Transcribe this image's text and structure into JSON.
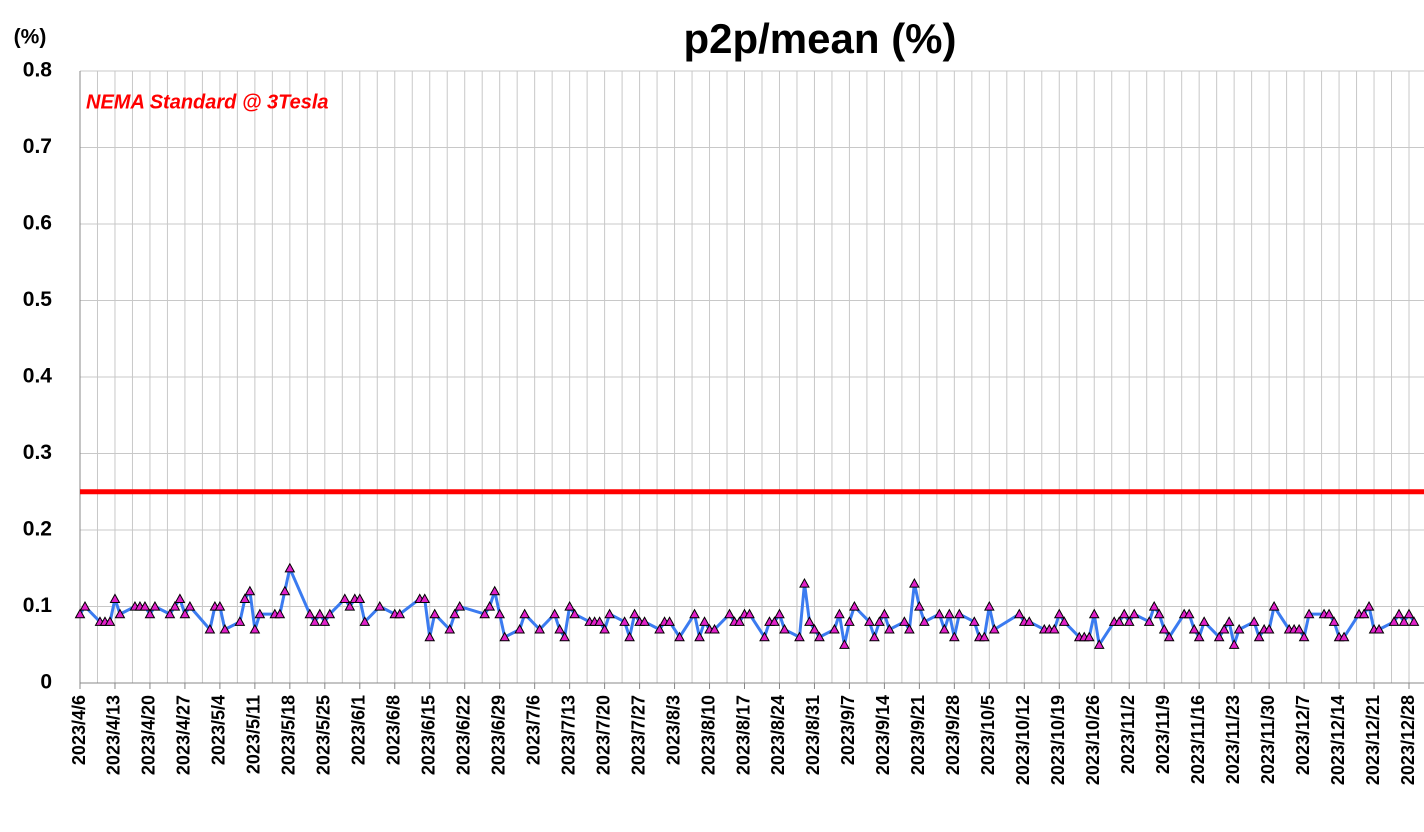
{
  "chart_data": {
    "type": "line",
    "title": "p2p/mean (%)",
    "y_label": "(%)",
    "color": "#3b7bf0",
    "marker_color": "#e020c8",
    "xlim": [
      "2023/4/6",
      "2023/12/31"
    ],
    "xticks": [
      "2023/4/6",
      "2023/4/13",
      "2023/4/20",
      "2023/4/27",
      "2023/5/4",
      "2023/5/11",
      "2023/5/18",
      "2023/5/25",
      "2023/6/1",
      "2023/6/8",
      "2023/6/15",
      "2023/6/22",
      "2023/6/29",
      "2023/7/6",
      "2023/7/13",
      "2023/7/20",
      "2023/7/27",
      "2023/8/3",
      "2023/8/10",
      "2023/8/17",
      "2023/8/24",
      "2023/8/31",
      "2023/9/7",
      "2023/9/14",
      "2023/9/21",
      "2023/9/28",
      "2023/10/5",
      "2023/10/12",
      "2023/10/19",
      "2023/10/26",
      "2023/11/2",
      "2023/11/9",
      "2023/11/16",
      "2023/11/23",
      "2023/11/30",
      "2023/12/7",
      "2023/12/14",
      "2023/12/21",
      "2023/12/28"
    ],
    "ylim": [
      0,
      0.8
    ],
    "yticks": [
      0,
      0.1,
      0.2,
      0.3,
      0.4,
      0.5,
      0.6,
      0.7,
      0.8
    ],
    "grid": true,
    "reference_line": {
      "value": 0.25,
      "color": "#ff0000",
      "label": "NEMA Standard @ 3Tesla"
    },
    "x": [
      "2023/4/6",
      "2023/4/7",
      "2023/4/10",
      "2023/4/11",
      "2023/4/12",
      "2023/4/13",
      "2023/4/14",
      "2023/4/17",
      "2023/4/18",
      "2023/4/19",
      "2023/4/20",
      "2023/4/21",
      "2023/4/24",
      "2023/4/25",
      "2023/4/26",
      "2023/4/27",
      "2023/4/28",
      "2023/5/2",
      "2023/5/3",
      "2023/5/4",
      "2023/5/5",
      "2023/5/8",
      "2023/5/9",
      "2023/5/10",
      "2023/5/11",
      "2023/5/12",
      "2023/5/15",
      "2023/5/16",
      "2023/5/17",
      "2023/5/18",
      "2023/5/22",
      "2023/5/23",
      "2023/5/24",
      "2023/5/25",
      "2023/5/26",
      "2023/5/29",
      "2023/5/30",
      "2023/5/31",
      "2023/6/1",
      "2023/6/2",
      "2023/6/5",
      "2023/6/8",
      "2023/6/9",
      "2023/6/13",
      "2023/6/14",
      "2023/6/15",
      "2023/6/16",
      "2023/6/19",
      "2023/6/20",
      "2023/6/21",
      "2023/6/26",
      "2023/6/27",
      "2023/6/28",
      "2023/6/29",
      "2023/6/30",
      "2023/7/3",
      "2023/7/4",
      "2023/7/7",
      "2023/7/10",
      "2023/7/11",
      "2023/7/12",
      "2023/7/13",
      "2023/7/14",
      "2023/7/17",
      "2023/7/18",
      "2023/7/19",
      "2023/7/20",
      "2023/7/21",
      "2023/7/24",
      "2023/7/25",
      "2023/7/26",
      "2023/7/27",
      "2023/7/28",
      "2023/7/31",
      "2023/8/1",
      "2023/8/2",
      "2023/8/4",
      "2023/8/7",
      "2023/8/8",
      "2023/8/9",
      "2023/8/10",
      "2023/8/11",
      "2023/8/14",
      "2023/8/15",
      "2023/8/16",
      "2023/8/17",
      "2023/8/18",
      "2023/8/21",
      "2023/8/22",
      "2023/8/23",
      "2023/8/24",
      "2023/8/25",
      "2023/8/28",
      "2023/8/29",
      "2023/8/30",
      "2023/8/31",
      "2023/9/1",
      "2023/9/4",
      "2023/9/5",
      "2023/9/6",
      "2023/9/7",
      "2023/9/8",
      "2023/9/11",
      "2023/9/12",
      "2023/9/13",
      "2023/9/14",
      "2023/9/15",
      "2023/9/18",
      "2023/9/19",
      "2023/9/20",
      "2023/9/21",
      "2023/9/22",
      "2023/9/25",
      "2023/9/26",
      "2023/9/27",
      "2023/9/28",
      "2023/9/29",
      "2023/10/2",
      "2023/10/3",
      "2023/10/4",
      "2023/10/5",
      "2023/10/6",
      "2023/10/11",
      "2023/10/12",
      "2023/10/13",
      "2023/10/16",
      "2023/10/17",
      "2023/10/18",
      "2023/10/19",
      "2023/10/20",
      "2023/10/23",
      "2023/10/24",
      "2023/10/25",
      "2023/10/26",
      "2023/10/27",
      "2023/10/30",
      "2023/10/31",
      "2023/11/1",
      "2023/11/2",
      "2023/11/3",
      "2023/11/6",
      "2023/11/7",
      "2023/11/8",
      "2023/11/9",
      "2023/11/10",
      "2023/11/13",
      "2023/11/14",
      "2023/11/15",
      "2023/11/16",
      "2023/11/17",
      "2023/11/20",
      "2023/11/21",
      "2023/11/22",
      "2023/11/23",
      "2023/11/24",
      "2023/11/27",
      "2023/11/28",
      "2023/11/29",
      "2023/11/30",
      "2023/12/1",
      "2023/12/4",
      "2023/12/5",
      "2023/12/6",
      "2023/12/7",
      "2023/12/8",
      "2023/12/11",
      "2023/12/12",
      "2023/12/13",
      "2023/12/14",
      "2023/12/15",
      "2023/12/18",
      "2023/12/19",
      "2023/12/20",
      "2023/12/21",
      "2023/12/22",
      "2023/12/25",
      "2023/12/26",
      "2023/12/27",
      "2023/12/28",
      "2023/12/29"
    ],
    "values": [
      0.09,
      0.1,
      0.08,
      0.08,
      0.08,
      0.11,
      0.09,
      0.1,
      0.1,
      0.1,
      0.09,
      0.1,
      0.09,
      0.1,
      0.11,
      0.09,
      0.1,
      0.07,
      0.1,
      0.1,
      0.07,
      0.08,
      0.11,
      0.12,
      0.07,
      0.09,
      0.09,
      0.09,
      0.12,
      0.15,
      0.09,
      0.08,
      0.09,
      0.08,
      0.09,
      0.11,
      0.1,
      0.11,
      0.11,
      0.08,
      0.1,
      0.09,
      0.09,
      0.11,
      0.11,
      0.06,
      0.09,
      0.07,
      0.09,
      0.1,
      0.09,
      0.1,
      0.12,
      0.09,
      0.06,
      0.07,
      0.09,
      0.07,
      0.09,
      0.07,
      0.06,
      0.1,
      0.09,
      0.08,
      0.08,
      0.08,
      0.07,
      0.09,
      0.08,
      0.06,
      0.09,
      0.08,
      0.08,
      0.07,
      0.08,
      0.08,
      0.06,
      0.09,
      0.06,
      0.08,
      0.07,
      0.07,
      0.09,
      0.08,
      0.08,
      0.09,
      0.09,
      0.06,
      0.08,
      0.08,
      0.09,
      0.07,
      0.06,
      0.13,
      0.08,
      0.07,
      0.06,
      0.07,
      0.09,
      0.05,
      0.08,
      0.1,
      0.08,
      0.06,
      0.08,
      0.09,
      0.07,
      0.08,
      0.07,
      0.13,
      0.1,
      0.08,
      0.09,
      0.07,
      0.09,
      0.06,
      0.09,
      0.08,
      0.06,
      0.06,
      0.1,
      0.07,
      0.09,
      0.08,
      0.08,
      0.07,
      0.07,
      0.07,
      0.09,
      0.08,
      0.06,
      0.06,
      0.06,
      0.09,
      0.05,
      0.08,
      0.08,
      0.09,
      0.08,
      0.09,
      0.08,
      0.1,
      0.09,
      0.07,
      0.06,
      0.09,
      0.09,
      0.07,
      0.06,
      0.08,
      0.06,
      0.07,
      0.08,
      0.05,
      0.07,
      0.08,
      0.06,
      0.07,
      0.07,
      0.1,
      0.07,
      0.07,
      0.07,
      0.06,
      0.09,
      0.09,
      0.09,
      0.08,
      0.06,
      0.06,
      0.09,
      0.09,
      0.1,
      0.07,
      0.07,
      0.08,
      0.09,
      0.08,
      0.09,
      0.08
    ]
  }
}
